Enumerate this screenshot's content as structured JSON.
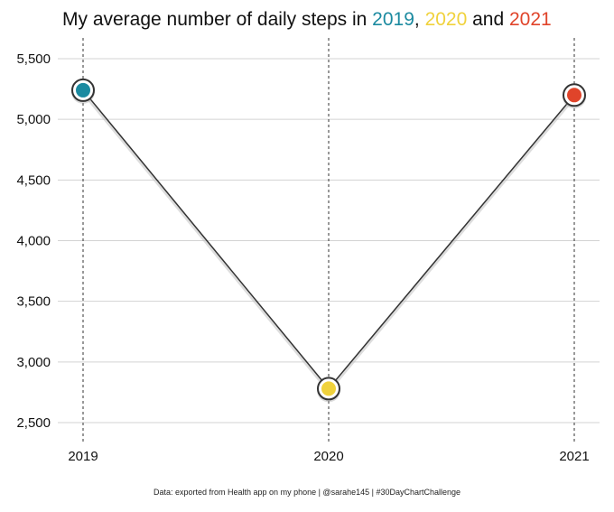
{
  "title": {
    "prefix": "My average number of daily steps in ",
    "y2019": "2019",
    "sep1": ", ",
    "y2020": "2020",
    "sep2": " and ",
    "y2021": "2021"
  },
  "caption": "Data: exported from Health app on my phone | @sarahe145 | #30DayChartChallenge",
  "colors": {
    "y2019": "#1b8aa0",
    "y2020": "#f0d23c",
    "y2021": "#e0442a",
    "line": "#333333",
    "grid": "#d3d3d3"
  },
  "chart_data": {
    "type": "line",
    "categories": [
      "2019",
      "2020",
      "2021"
    ],
    "values": [
      5240,
      2780,
      5200
    ],
    "point_colors": [
      "#1b8aa0",
      "#f0d23c",
      "#e0442a"
    ],
    "ylim": [
      2400,
      5650
    ],
    "yticks": [
      2500,
      3000,
      3500,
      4000,
      4500,
      5000,
      5500
    ],
    "ytick_labels": [
      "2,500",
      "3,000",
      "3,500",
      "4,000",
      "4,500",
      "5,000",
      "5,500"
    ],
    "grid": true,
    "vertical_dashed_lines": true
  }
}
